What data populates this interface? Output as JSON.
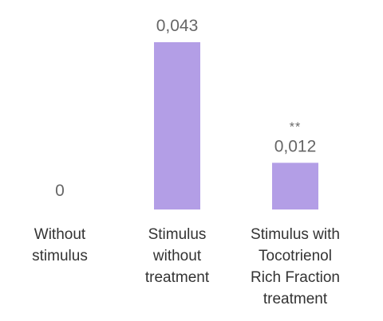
{
  "chart_data": {
    "type": "bar",
    "categories": [
      [
        "Without",
        "stimulus"
      ],
      [
        "Stimulus",
        "without",
        "treatment"
      ],
      [
        "Stimulus with",
        "Tocotrienol",
        "Rich Fraction",
        "treatment"
      ]
    ],
    "values": [
      0,
      0.043,
      0.012
    ],
    "value_labels": [
      "0",
      "0,043",
      "0,012"
    ],
    "annotations": [
      "",
      "",
      "**"
    ],
    "ylim": [
      0,
      0.043
    ],
    "grid": false,
    "colors": {
      "bar": "#b39ee6",
      "value_text": "#666666",
      "category_text": "#333333"
    }
  }
}
